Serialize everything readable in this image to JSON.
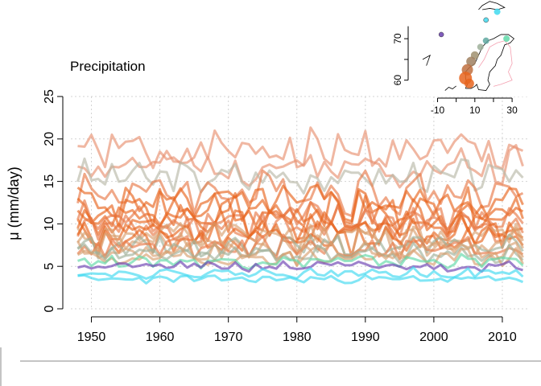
{
  "chart_data": {
    "type": "line",
    "title": "Precipitation",
    "ylabel": "μ (mm/day)",
    "xlabel": "",
    "xlim": [
      1947,
      2014
    ],
    "ylim": [
      0,
      25
    ],
    "x_ticks": [
      1950,
      1960,
      1970,
      1980,
      1990,
      2000,
      2010
    ],
    "y_ticks": [
      0,
      5,
      10,
      15,
      20,
      25
    ],
    "grid": true,
    "legend": "none",
    "colors": {
      "high_orange": "#e67a4a",
      "mid_orange": "#e8651f",
      "tan": "#d9a070",
      "grey_green": "#9fb09a",
      "purple": "#6a3fb0",
      "cyan": "#3fd9ef",
      "green": "#5fd9a8"
    },
    "series": [
      {
        "color": "#e89070",
        "base": 18.5,
        "amp": 2.2,
        "seed": 1
      },
      {
        "color": "#e89070",
        "base": 16.8,
        "amp": 1.8,
        "seed": 2
      },
      {
        "color": "#b8b8a8",
        "base": 15.5,
        "amp": 1.5,
        "seed": 3
      },
      {
        "color": "#e87a48",
        "base": 13.8,
        "amp": 2.0,
        "seed": 4
      },
      {
        "color": "#e8651f",
        "base": 12.5,
        "amp": 1.8,
        "seed": 5
      },
      {
        "color": "#e8651f",
        "base": 11.8,
        "amp": 1.8,
        "seed": 6
      },
      {
        "color": "#e8651f",
        "base": 11.0,
        "amp": 1.7,
        "seed": 7
      },
      {
        "color": "#e87a48",
        "base": 10.5,
        "amp": 1.6,
        "seed": 8
      },
      {
        "color": "#e8651f",
        "base": 10.0,
        "amp": 1.6,
        "seed": 9
      },
      {
        "color": "#e87a48",
        "base": 9.5,
        "amp": 1.5,
        "seed": 10
      },
      {
        "color": "#e8651f",
        "base": 9.0,
        "amp": 1.5,
        "seed": 11
      },
      {
        "color": "#d9a070",
        "base": 8.6,
        "amp": 1.3,
        "seed": 12
      },
      {
        "color": "#e8651f",
        "base": 8.2,
        "amp": 1.4,
        "seed": 13
      },
      {
        "color": "#d9a070",
        "base": 7.8,
        "amp": 1.2,
        "seed": 14
      },
      {
        "color": "#9fb09a",
        "base": 7.4,
        "amp": 1.0,
        "seed": 15
      },
      {
        "color": "#e87a48",
        "base": 7.2,
        "amp": 1.2,
        "seed": 16
      },
      {
        "color": "#d9a070",
        "base": 6.8,
        "amp": 1.1,
        "seed": 17
      },
      {
        "color": "#9fb09a",
        "base": 6.4,
        "amp": 0.9,
        "seed": 18
      },
      {
        "color": "#d9a070",
        "base": 6.0,
        "amp": 0.9,
        "seed": 19
      },
      {
        "color": "#5fd9a8",
        "base": 5.6,
        "amp": 0.6,
        "seed": 20
      },
      {
        "color": "#6a3fb0",
        "base": 5.0,
        "amp": 0.5,
        "seed": 21
      },
      {
        "color": "#3fd9ef",
        "base": 4.2,
        "amp": 0.45,
        "seed": 22
      },
      {
        "color": "#3fd9ef",
        "base": 3.5,
        "amp": 0.35,
        "seed": 23
      }
    ],
    "inset_map": {
      "x_ticks": [
        -10,
        10,
        30
      ],
      "y_ticks": [
        60,
        70
      ],
      "xlim": [
        -18,
        36
      ],
      "ylim": [
        58,
        77
      ],
      "points": [
        {
          "lon": 22,
          "lat": 76.5,
          "color": "#3fd9ef",
          "size": 4
        },
        {
          "lon": 16,
          "lat": 74.5,
          "color": "#3fd9ef",
          "size": 3
        },
        {
          "lon": 16,
          "lat": 69.5,
          "color": "#5fa8a0",
          "size": 4
        },
        {
          "lon": 27,
          "lat": 70.0,
          "color": "#5fd9a8",
          "size": 4
        },
        {
          "lon": 13,
          "lat": 68.0,
          "color": "#9fb09a",
          "size": 4
        },
        {
          "lon": 10,
          "lat": 66.0,
          "color": "#a09070",
          "size": 5
        },
        {
          "lon": 8,
          "lat": 64.5,
          "color": "#a08060",
          "size": 6
        },
        {
          "lon": 6,
          "lat": 62.5,
          "color": "#c07040",
          "size": 7
        },
        {
          "lon": 5,
          "lat": 60.5,
          "color": "#e8651f",
          "size": 8
        },
        {
          "lon": 7,
          "lat": 59.2,
          "color": "#e8651f",
          "size": 6
        },
        {
          "lon": -8,
          "lat": 71.0,
          "color": "#6a3fb0",
          "size": 3
        }
      ]
    }
  }
}
